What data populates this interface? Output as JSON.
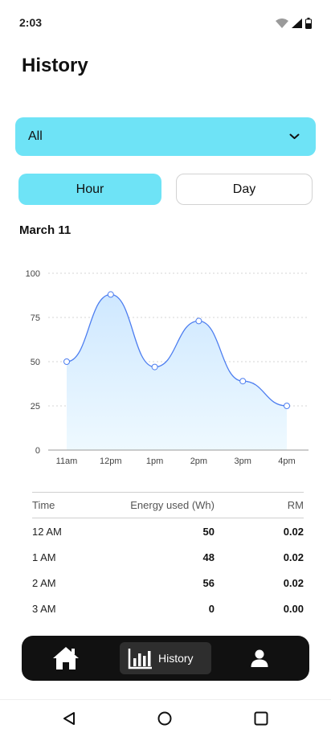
{
  "status_bar": {
    "time": "2:03",
    "icons": [
      "wifi-icon",
      "cellular-signal-icon",
      "battery-icon"
    ]
  },
  "page_title": "History",
  "filter": {
    "selected": "All",
    "icon": "chevron-down-icon"
  },
  "period_toggle": {
    "options": [
      "Hour",
      "Day"
    ],
    "active": "Hour"
  },
  "date_label": "March 11",
  "chart_data": {
    "type": "area",
    "title": "",
    "xlabel": "",
    "ylabel": "",
    "categories": [
      "11am",
      "12pm",
      "1pm",
      "2pm",
      "3pm",
      "4pm"
    ],
    "values": [
      50,
      88,
      47,
      73,
      39,
      25
    ],
    "ylim": [
      0,
      100
    ],
    "yticks": [
      0,
      25,
      50,
      75,
      100
    ],
    "grid": true,
    "smooth": true,
    "colors": {
      "line": "#4d7ef0",
      "fill_top": "#cfe8ff",
      "fill_bottom": "#eef9ff"
    }
  },
  "table": {
    "headers": {
      "time": "Time",
      "energy": "Energy used (Wh)",
      "rm": "RM"
    },
    "rows": [
      {
        "time": "12 AM",
        "energy": "50",
        "rm": "0.02"
      },
      {
        "time": "1 AM",
        "energy": "48",
        "rm": "0.02"
      },
      {
        "time": "2 AM",
        "energy": "56",
        "rm": "0.02"
      },
      {
        "time": "3 AM",
        "energy": "0",
        "rm": "0.00"
      }
    ]
  },
  "bottom_nav": {
    "items": [
      {
        "name": "home",
        "icon": "home-icon"
      },
      {
        "name": "history",
        "icon": "bar-chart-icon",
        "label": "History",
        "active": true
      },
      {
        "name": "profile",
        "icon": "user-icon"
      }
    ]
  },
  "theme": {
    "accent": "#6ee3f6",
    "nav_bg": "#111111"
  }
}
